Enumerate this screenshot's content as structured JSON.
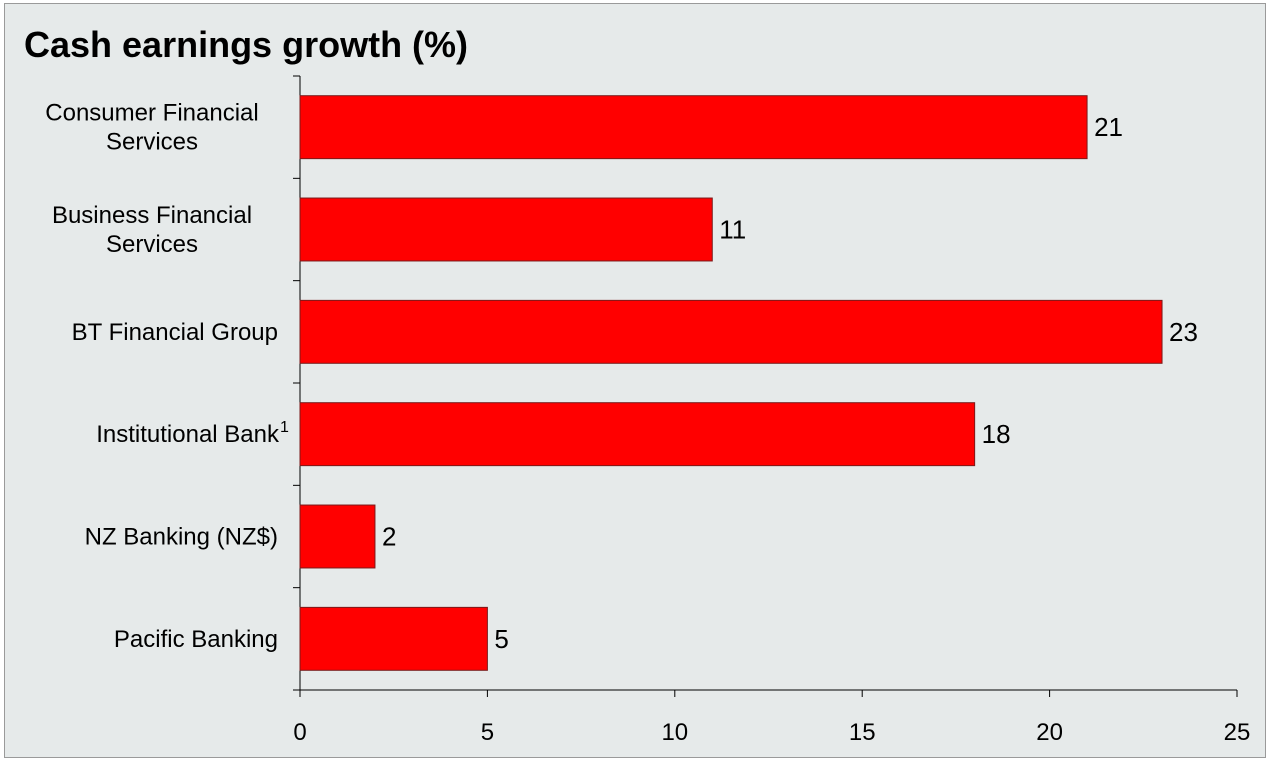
{
  "chart_data": {
    "type": "bar",
    "orientation": "horizontal",
    "title": "Cash earnings growth (%)",
    "categories": [
      [
        "Consumer Financial",
        "Services"
      ],
      [
        "Business Financial",
        "Services"
      ],
      [
        "BT Financial Group"
      ],
      [
        "Institutional Bank"
      ],
      [
        "NZ Banking (NZ$)"
      ],
      [
        "Pacific Banking"
      ]
    ],
    "footnotes": [
      "",
      "",
      "",
      "1",
      "",
      ""
    ],
    "values": [
      21,
      11,
      23,
      18,
      2,
      5
    ],
    "data_labels": [
      "21",
      "11",
      "23",
      "18",
      "2",
      "5"
    ],
    "xlim": [
      0,
      25
    ],
    "xticks": [
      0,
      5,
      10,
      15,
      20,
      25
    ],
    "xlabel": "",
    "ylabel": "",
    "grid": false,
    "legend": "none",
    "bar_color": "#ff0000",
    "background_color": "#e6eaea"
  }
}
